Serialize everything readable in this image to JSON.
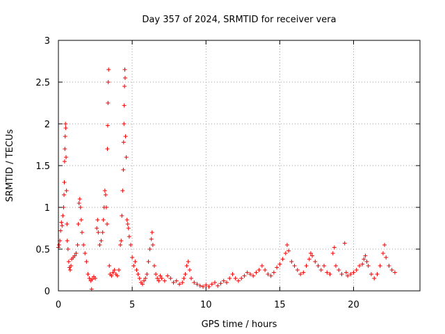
{
  "chart_data": {
    "type": "scatter",
    "title": "Day 357 of 2024, SRMTID for receiver vera",
    "xlabel": "GPS time / hours",
    "ylabel": "SRMTID / TECUs",
    "xlim": [
      0,
      24.5
    ],
    "ylim": [
      0,
      3
    ],
    "x_ticks": [
      "0",
      "5",
      "10",
      "15",
      "20"
    ],
    "x_tick_values": [
      0,
      5,
      10,
      15,
      20
    ],
    "y_ticks": [
      "0",
      "0.5",
      "1",
      "1.5",
      "2",
      "2.5",
      "3"
    ],
    "y_tick_values": [
      0,
      0.5,
      1,
      1.5,
      2,
      2.5,
      3
    ],
    "grid": true,
    "marker": "+",
    "marker_color": "#ee0000",
    "series": [
      {
        "name": "SRMTID",
        "points": [
          [
            0.0,
            0.52
          ],
          [
            0.05,
            0.55
          ],
          [
            0.1,
            0.6
          ],
          [
            0.15,
            0.72
          ],
          [
            0.2,
            0.82
          ],
          [
            0.25,
            0.78
          ],
          [
            0.3,
            0.9
          ],
          [
            0.35,
            1.0
          ],
          [
            0.38,
            1.15
          ],
          [
            0.4,
            1.3
          ],
          [
            0.42,
            1.55
          ],
          [
            0.44,
            1.7
          ],
          [
            0.46,
            1.85
          ],
          [
            0.48,
            2.0
          ],
          [
            0.5,
            1.95
          ],
          [
            0.52,
            1.6
          ],
          [
            0.55,
            1.2
          ],
          [
            0.58,
            0.8
          ],
          [
            0.6,
            0.6
          ],
          [
            0.65,
            0.5
          ],
          [
            0.7,
            0.35
          ],
          [
            0.75,
            0.28
          ],
          [
            0.8,
            0.25
          ],
          [
            0.85,
            0.3
          ],
          [
            0.9,
            0.38
          ],
          [
            1.0,
            0.4
          ],
          [
            1.1,
            0.42
          ],
          [
            1.2,
            0.45
          ],
          [
            1.3,
            0.55
          ],
          [
            1.35,
            0.8
          ],
          [
            1.4,
            1.05
          ],
          [
            1.45,
            1.1
          ],
          [
            1.5,
            1.0
          ],
          [
            1.55,
            0.85
          ],
          [
            1.6,
            0.7
          ],
          [
            1.7,
            0.55
          ],
          [
            1.8,
            0.45
          ],
          [
            1.9,
            0.35
          ],
          [
            2.0,
            0.2
          ],
          [
            2.1,
            0.15
          ],
          [
            2.2,
            0.12
          ],
          [
            2.25,
            0.02
          ],
          [
            2.3,
            0.14
          ],
          [
            2.4,
            0.17
          ],
          [
            2.5,
            0.15
          ],
          [
            2.6,
            0.75
          ],
          [
            2.65,
            0.85
          ],
          [
            2.7,
            0.7
          ],
          [
            2.8,
            0.55
          ],
          [
            2.9,
            0.6
          ],
          [
            3.0,
            0.7
          ],
          [
            3.05,
            0.85
          ],
          [
            3.1,
            1.0
          ],
          [
            3.15,
            1.2
          ],
          [
            3.2,
            1.15
          ],
          [
            3.25,
            1.0
          ],
          [
            3.3,
            0.8
          ],
          [
            3.32,
            1.7
          ],
          [
            3.34,
            1.98
          ],
          [
            3.36,
            2.25
          ],
          [
            3.38,
            2.5
          ],
          [
            3.4,
            2.65
          ],
          [
            3.45,
            0.3
          ],
          [
            3.5,
            0.2
          ],
          [
            3.6,
            0.18
          ],
          [
            3.7,
            0.22
          ],
          [
            3.8,
            0.25
          ],
          [
            3.9,
            0.2
          ],
          [
            4.0,
            0.18
          ],
          [
            4.1,
            0.25
          ],
          [
            4.2,
            0.55
          ],
          [
            4.25,
            0.6
          ],
          [
            4.3,
            0.9
          ],
          [
            4.35,
            1.2
          ],
          [
            4.4,
            1.45
          ],
          [
            4.42,
            1.78
          ],
          [
            4.44,
            2.0
          ],
          [
            4.46,
            2.22
          ],
          [
            4.48,
            2.45
          ],
          [
            4.5,
            2.65
          ],
          [
            4.52,
            2.55
          ],
          [
            4.55,
            1.85
          ],
          [
            4.6,
            1.6
          ],
          [
            4.65,
            0.85
          ],
          [
            4.7,
            0.8
          ],
          [
            4.75,
            0.75
          ],
          [
            4.8,
            0.65
          ],
          [
            4.9,
            0.55
          ],
          [
            5.0,
            0.4
          ],
          [
            5.1,
            0.3
          ],
          [
            5.2,
            0.35
          ],
          [
            5.3,
            0.25
          ],
          [
            5.4,
            0.2
          ],
          [
            5.5,
            0.15
          ],
          [
            5.6,
            0.1
          ],
          [
            5.7,
            0.08
          ],
          [
            5.8,
            0.12
          ],
          [
            5.9,
            0.15
          ],
          [
            6.0,
            0.2
          ],
          [
            6.1,
            0.35
          ],
          [
            6.2,
            0.5
          ],
          [
            6.3,
            0.62
          ],
          [
            6.35,
            0.7
          ],
          [
            6.4,
            0.55
          ],
          [
            6.5,
            0.3
          ],
          [
            6.6,
            0.2
          ],
          [
            6.7,
            0.15
          ],
          [
            6.8,
            0.12
          ],
          [
            6.9,
            0.18
          ],
          [
            7.0,
            0.15
          ],
          [
            7.2,
            0.12
          ],
          [
            7.4,
            0.18
          ],
          [
            7.6,
            0.15
          ],
          [
            7.8,
            0.1
          ],
          [
            8.0,
            0.12
          ],
          [
            8.2,
            0.08
          ],
          [
            8.4,
            0.1
          ],
          [
            8.5,
            0.15
          ],
          [
            8.6,
            0.2
          ],
          [
            8.7,
            0.3
          ],
          [
            8.8,
            0.35
          ],
          [
            8.9,
            0.25
          ],
          [
            9.0,
            0.15
          ],
          [
            9.2,
            0.1
          ],
          [
            9.4,
            0.08
          ],
          [
            9.6,
            0.06
          ],
          [
            9.8,
            0.05
          ],
          [
            10.0,
            0.07
          ],
          [
            10.2,
            0.05
          ],
          [
            10.4,
            0.08
          ],
          [
            10.6,
            0.1
          ],
          [
            10.8,
            0.06
          ],
          [
            11.0,
            0.09
          ],
          [
            11.2,
            0.12
          ],
          [
            11.4,
            0.1
          ],
          [
            11.6,
            0.15
          ],
          [
            11.8,
            0.2
          ],
          [
            12.0,
            0.15
          ],
          [
            12.2,
            0.12
          ],
          [
            12.4,
            0.15
          ],
          [
            12.6,
            0.18
          ],
          [
            12.8,
            0.22
          ],
          [
            13.0,
            0.2
          ],
          [
            13.2,
            0.18
          ],
          [
            13.4,
            0.22
          ],
          [
            13.6,
            0.25
          ],
          [
            13.8,
            0.3
          ],
          [
            14.0,
            0.25
          ],
          [
            14.2,
            0.2
          ],
          [
            14.4,
            0.18
          ],
          [
            14.6,
            0.22
          ],
          [
            14.8,
            0.28
          ],
          [
            15.0,
            0.32
          ],
          [
            15.2,
            0.38
          ],
          [
            15.4,
            0.45
          ],
          [
            15.5,
            0.55
          ],
          [
            15.6,
            0.48
          ],
          [
            15.8,
            0.35
          ],
          [
            16.0,
            0.3
          ],
          [
            16.2,
            0.25
          ],
          [
            16.4,
            0.2
          ],
          [
            16.6,
            0.22
          ],
          [
            16.8,
            0.3
          ],
          [
            17.0,
            0.38
          ],
          [
            17.1,
            0.45
          ],
          [
            17.2,
            0.42
          ],
          [
            17.4,
            0.35
          ],
          [
            17.6,
            0.3
          ],
          [
            17.8,
            0.25
          ],
          [
            18.0,
            0.3
          ],
          [
            18.2,
            0.22
          ],
          [
            18.4,
            0.2
          ],
          [
            18.6,
            0.45
          ],
          [
            18.7,
            0.52
          ],
          [
            18.8,
            0.3
          ],
          [
            19.0,
            0.25
          ],
          [
            19.2,
            0.2
          ],
          [
            19.4,
            0.57
          ],
          [
            19.5,
            0.22
          ],
          [
            19.6,
            0.18
          ],
          [
            19.8,
            0.2
          ],
          [
            20.0,
            0.22
          ],
          [
            20.2,
            0.25
          ],
          [
            20.4,
            0.3
          ],
          [
            20.6,
            0.32
          ],
          [
            20.7,
            0.38
          ],
          [
            20.8,
            0.42
          ],
          [
            20.9,
            0.35
          ],
          [
            21.0,
            0.3
          ],
          [
            21.2,
            0.2
          ],
          [
            21.4,
            0.15
          ],
          [
            21.6,
            0.2
          ],
          [
            21.8,
            0.3
          ],
          [
            22.0,
            0.45
          ],
          [
            22.1,
            0.55
          ],
          [
            22.2,
            0.4
          ],
          [
            22.4,
            0.3
          ],
          [
            22.6,
            0.25
          ],
          [
            22.8,
            0.22
          ]
        ]
      }
    ]
  }
}
